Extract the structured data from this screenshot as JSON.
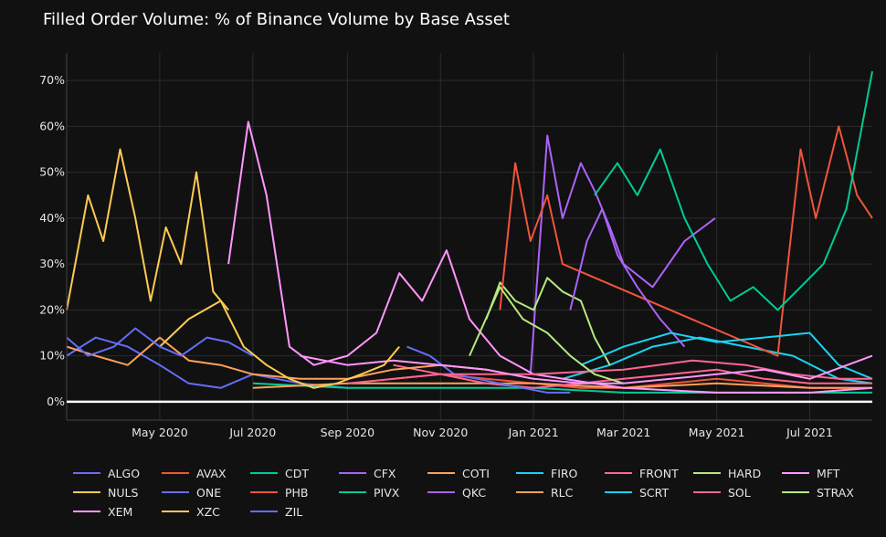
{
  "chart_data": {
    "type": "line",
    "title": "Filled Order Volume: % of Binance Volume by Base Asset",
    "xlabel": "",
    "ylabel": "",
    "x_range": [
      "2020-03-01",
      "2021-08-11"
    ],
    "y_range": [
      -4,
      76
    ],
    "y_unit": "%",
    "grid": true,
    "legend_position": "bottom",
    "x_ticks": [
      {
        "date": "2020-05-01",
        "label": "May 2020"
      },
      {
        "date": "2020-07-01",
        "label": "Jul 2020"
      },
      {
        "date": "2020-09-01",
        "label": "Sep 2020"
      },
      {
        "date": "2020-11-01",
        "label": "Nov 2020"
      },
      {
        "date": "2021-01-01",
        "label": "Jan 2021"
      },
      {
        "date": "2021-03-01",
        "label": "Mar 2021"
      },
      {
        "date": "2021-05-01",
        "label": "May 2021"
      },
      {
        "date": "2021-07-01",
        "label": "Jul 2021"
      }
    ],
    "y_ticks": [
      {
        "value": 0,
        "label": "0%"
      },
      {
        "value": 10,
        "label": "10%"
      },
      {
        "value": 20,
        "label": "20%"
      },
      {
        "value": 30,
        "label": "30%"
      },
      {
        "value": 40,
        "label": "40%"
      },
      {
        "value": 50,
        "label": "50%"
      },
      {
        "value": 60,
        "label": "60%"
      },
      {
        "value": 70,
        "label": "70%"
      }
    ],
    "series": [
      {
        "name": "ALGO",
        "color": "#636efa",
        "points": [
          [
            "2020-03-01",
            10
          ],
          [
            "2020-03-20",
            14
          ],
          [
            "2020-04-10",
            12
          ],
          [
            "2020-05-01",
            8
          ],
          [
            "2020-05-20",
            4
          ],
          [
            "2020-06-10",
            3
          ],
          [
            "2020-07-01",
            6
          ],
          [
            "2020-08-01",
            4
          ],
          [
            "2020-09-01",
            3
          ]
        ]
      },
      {
        "name": "AVAX",
        "color": "#ef553b",
        "points": [
          [
            "2020-10-01",
            5
          ],
          [
            "2020-11-01",
            6
          ],
          [
            "2020-12-01",
            5
          ],
          [
            "2021-01-01",
            4
          ],
          [
            "2021-02-01",
            3
          ],
          [
            "2021-03-01",
            3
          ],
          [
            "2021-04-01",
            4
          ],
          [
            "2021-05-01",
            5
          ],
          [
            "2021-06-01",
            4
          ],
          [
            "2021-07-01",
            3
          ],
          [
            "2021-08-11",
            3
          ]
        ]
      },
      {
        "name": "CDT",
        "color": "#00cc96",
        "points": [
          [
            "2020-07-01",
            4
          ],
          [
            "2020-09-01",
            3
          ],
          [
            "2020-11-01",
            3
          ],
          [
            "2021-01-01",
            3
          ],
          [
            "2021-03-01",
            2
          ],
          [
            "2021-05-01",
            2
          ],
          [
            "2021-07-01",
            2
          ],
          [
            "2021-08-11",
            2
          ]
        ]
      },
      {
        "name": "CFX",
        "color": "#ab63fa",
        "points": [
          [
            "2020-12-30",
            6
          ],
          [
            "2021-01-10",
            58
          ],
          [
            "2021-01-20",
            40
          ],
          [
            "2021-02-01",
            52
          ],
          [
            "2021-02-10",
            46
          ],
          [
            "2021-02-20",
            38
          ],
          [
            "2021-03-01",
            30
          ],
          [
            "2021-03-20",
            25
          ],
          [
            "2021-04-10",
            35
          ],
          [
            "2021-04-30",
            40
          ]
        ]
      },
      {
        "name": "COTI",
        "color": "#ffa15a",
        "points": [
          [
            "2020-07-01",
            3
          ],
          [
            "2020-09-01",
            4
          ],
          [
            "2020-11-01",
            4
          ],
          [
            "2021-01-01",
            4
          ],
          [
            "2021-03-01",
            3
          ],
          [
            "2021-05-01",
            4
          ],
          [
            "2021-07-01",
            3
          ],
          [
            "2021-08-11",
            3
          ]
        ]
      },
      {
        "name": "FIRO",
        "color": "#19d3f3",
        "points": [
          [
            "2021-01-20",
            5
          ],
          [
            "2021-02-20",
            8
          ],
          [
            "2021-03-20",
            12
          ],
          [
            "2021-04-20",
            14
          ],
          [
            "2021-05-20",
            12
          ],
          [
            "2021-06-20",
            10
          ],
          [
            "2021-07-20",
            5
          ],
          [
            "2021-08-11",
            4
          ]
        ]
      },
      {
        "name": "FRONT",
        "color": "#ff6692",
        "points": [
          [
            "2020-10-01",
            8
          ],
          [
            "2020-11-01",
            6
          ],
          [
            "2020-12-01",
            4
          ],
          [
            "2021-01-01",
            3
          ],
          [
            "2021-02-01",
            4
          ],
          [
            "2021-03-01",
            5
          ],
          [
            "2021-04-01",
            6
          ],
          [
            "2021-05-01",
            7
          ],
          [
            "2021-06-01",
            5
          ],
          [
            "2021-07-01",
            4
          ],
          [
            "2021-08-11",
            4
          ]
        ]
      },
      {
        "name": "HARD",
        "color": "#b6e880",
        "points": [
          [
            "2020-12-01",
            18
          ],
          [
            "2020-12-10",
            26
          ],
          [
            "2020-12-20",
            22
          ],
          [
            "2021-01-01",
            20
          ],
          [
            "2021-01-10",
            27
          ],
          [
            "2021-01-20",
            24
          ],
          [
            "2021-02-01",
            22
          ],
          [
            "2021-02-10",
            14
          ],
          [
            "2021-02-20",
            8
          ]
        ]
      },
      {
        "name": "MFT",
        "color": "#ff97ff",
        "points": [
          [
            "2020-06-15",
            30
          ],
          [
            "2020-06-28",
            61
          ],
          [
            "2020-07-10",
            45
          ],
          [
            "2020-07-25",
            12
          ],
          [
            "2020-08-10",
            8
          ],
          [
            "2020-09-01",
            10
          ],
          [
            "2020-09-20",
            15
          ],
          [
            "2020-10-05",
            28
          ],
          [
            "2020-10-20",
            22
          ],
          [
            "2020-11-05",
            33
          ],
          [
            "2020-11-20",
            18
          ],
          [
            "2020-12-10",
            10
          ],
          [
            "2021-01-01",
            6
          ],
          [
            "2021-03-01",
            3
          ],
          [
            "2021-05-01",
            2
          ],
          [
            "2021-07-01",
            2
          ],
          [
            "2021-08-11",
            3
          ]
        ]
      },
      {
        "name": "NULS",
        "color": "#fecb52",
        "points": [
          [
            "2020-03-01",
            20
          ],
          [
            "2020-03-15",
            45
          ],
          [
            "2020-03-25",
            35
          ],
          [
            "2020-04-05",
            55
          ],
          [
            "2020-04-15",
            40
          ],
          [
            "2020-04-25",
            22
          ],
          [
            "2020-05-05",
            38
          ],
          [
            "2020-05-15",
            30
          ],
          [
            "2020-05-25",
            50
          ],
          [
            "2020-06-05",
            24
          ],
          [
            "2020-06-15",
            20
          ]
        ]
      },
      {
        "name": "ONE",
        "color": "#636efa",
        "points": [
          [
            "2020-10-10",
            12
          ],
          [
            "2020-10-25",
            10
          ],
          [
            "2020-11-10",
            6
          ],
          [
            "2020-11-25",
            5
          ],
          [
            "2020-12-10",
            4
          ],
          [
            "2020-12-25",
            3
          ],
          [
            "2021-01-10",
            2
          ],
          [
            "2021-01-25",
            2
          ]
        ]
      },
      {
        "name": "PHB",
        "color": "#ef553b",
        "points": [
          [
            "2020-12-10",
            20
          ],
          [
            "2020-12-20",
            52
          ],
          [
            "2020-12-30",
            35
          ],
          [
            "2021-01-10",
            45
          ],
          [
            "2021-01-20",
            30
          ],
          [
            "2021-06-10",
            10
          ],
          [
            "2021-06-25",
            55
          ],
          [
            "2021-07-05",
            40
          ],
          [
            "2021-07-20",
            60
          ],
          [
            "2021-08-01",
            45
          ],
          [
            "2021-08-11",
            40
          ]
        ]
      },
      {
        "name": "PIVX",
        "color": "#00cc96",
        "points": [
          [
            "2021-02-10",
            45
          ],
          [
            "2021-02-25",
            52
          ],
          [
            "2021-03-10",
            45
          ],
          [
            "2021-03-25",
            55
          ],
          [
            "2021-04-10",
            40
          ],
          [
            "2021-04-25",
            30
          ],
          [
            "2021-05-10",
            22
          ],
          [
            "2021-05-25",
            25
          ],
          [
            "2021-06-10",
            20
          ],
          [
            "2021-06-25",
            25
          ],
          [
            "2021-07-10",
            30
          ],
          [
            "2021-07-25",
            42
          ],
          [
            "2021-08-11",
            72
          ]
        ]
      },
      {
        "name": "QKC",
        "color": "#ab63fa",
        "points": [
          [
            "2021-01-25",
            20
          ],
          [
            "2021-02-05",
            35
          ],
          [
            "2021-02-15",
            42
          ],
          [
            "2021-02-25",
            32
          ],
          [
            "2021-03-10",
            25
          ],
          [
            "2021-03-25",
            18
          ],
          [
            "2021-04-10",
            12
          ]
        ]
      },
      {
        "name": "RLC",
        "color": "#ffa15a",
        "points": [
          [
            "2020-03-01",
            12
          ],
          [
            "2020-03-20",
            10
          ],
          [
            "2020-04-10",
            8
          ],
          [
            "2020-05-01",
            14
          ],
          [
            "2020-05-20",
            9
          ],
          [
            "2020-06-10",
            8
          ],
          [
            "2020-07-01",
            6
          ],
          [
            "2020-08-01",
            5
          ],
          [
            "2020-09-01",
            5
          ],
          [
            "2020-10-01",
            7
          ],
          [
            "2020-11-01",
            8
          ],
          [
            "2020-12-01",
            7
          ],
          [
            "2021-01-01",
            5
          ]
        ]
      },
      {
        "name": "SCRT",
        "color": "#19d3f3",
        "points": [
          [
            "2021-02-01",
            8
          ],
          [
            "2021-03-01",
            12
          ],
          [
            "2021-04-01",
            15
          ],
          [
            "2021-05-01",
            13
          ],
          [
            "2021-06-01",
            14
          ],
          [
            "2021-07-01",
            15
          ],
          [
            "2021-07-20",
            8
          ],
          [
            "2021-08-11",
            5
          ]
        ]
      },
      {
        "name": "SOL",
        "color": "#ff6692",
        "points": [
          [
            "2020-09-01",
            4
          ],
          [
            "2020-11-01",
            6
          ],
          [
            "2021-01-01",
            6
          ],
          [
            "2021-03-01",
            7
          ],
          [
            "2021-04-15",
            9
          ],
          [
            "2021-05-20",
            8
          ],
          [
            "2021-06-20",
            6
          ],
          [
            "2021-07-20",
            5
          ],
          [
            "2021-08-11",
            5
          ]
        ]
      },
      {
        "name": "STRAX",
        "color": "#b6e880",
        "points": [
          [
            "2020-11-20",
            10
          ],
          [
            "2020-12-10",
            25
          ],
          [
            "2020-12-25",
            18
          ],
          [
            "2021-01-10",
            15
          ],
          [
            "2021-01-25",
            10
          ],
          [
            "2021-02-10",
            6
          ],
          [
            "2021-03-01",
            4
          ]
        ]
      },
      {
        "name": "XEM",
        "color": "#ff97ff",
        "points": [
          [
            "2020-08-01",
            10
          ],
          [
            "2020-09-01",
            8
          ],
          [
            "2020-10-01",
            9
          ],
          [
            "2020-11-01",
            8
          ],
          [
            "2020-12-01",
            7
          ],
          [
            "2021-01-01",
            5
          ],
          [
            "2021-02-01",
            4
          ],
          [
            "2021-03-01",
            4
          ],
          [
            "2021-04-01",
            5
          ],
          [
            "2021-05-01",
            6
          ],
          [
            "2021-06-01",
            7
          ],
          [
            "2021-07-01",
            5
          ],
          [
            "2021-08-11",
            10
          ]
        ]
      },
      {
        "name": "XZC",
        "color": "#fecb52",
        "points": [
          [
            "2020-05-01",
            12
          ],
          [
            "2020-05-20",
            18
          ],
          [
            "2020-06-10",
            22
          ],
          [
            "2020-06-25",
            12
          ],
          [
            "2020-07-10",
            8
          ],
          [
            "2020-07-25",
            5
          ],
          [
            "2020-08-10",
            3
          ],
          [
            "2020-08-25",
            4
          ],
          [
            "2020-09-10",
            6
          ],
          [
            "2020-09-25",
            8
          ],
          [
            "2020-10-05",
            12
          ]
        ]
      },
      {
        "name": "ZIL",
        "color": "#636efa",
        "points": [
          [
            "2020-03-01",
            14
          ],
          [
            "2020-03-15",
            10
          ],
          [
            "2020-04-01",
            12
          ],
          [
            "2020-04-15",
            16
          ],
          [
            "2020-05-01",
            12
          ],
          [
            "2020-05-15",
            10
          ],
          [
            "2020-06-01",
            14
          ],
          [
            "2020-06-15",
            13
          ],
          [
            "2020-07-01",
            10
          ]
        ]
      }
    ]
  }
}
